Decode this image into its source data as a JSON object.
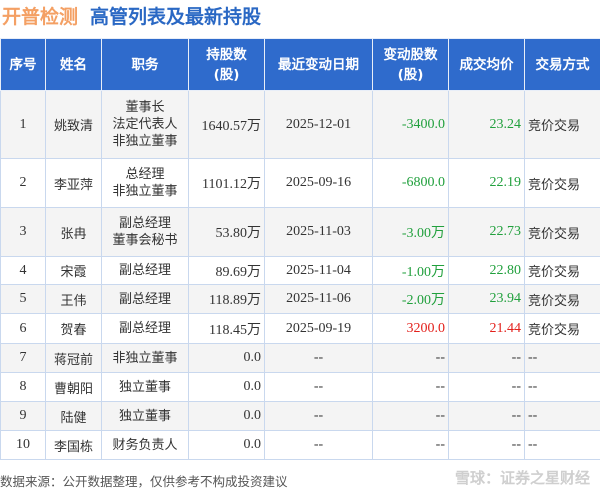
{
  "header": {
    "company": "开普检测",
    "title": "高管列表及最新持股"
  },
  "columns": [
    "序号",
    "姓名",
    "职务",
    "持股数\n(股)",
    "最近变动日期",
    "变动股数\n(股)",
    "成交均价",
    "交易方式"
  ],
  "colors": {
    "header_bg": "#2f6bcc",
    "company": "#f4a064",
    "title": "#2a68c4",
    "negative": "#21a03d",
    "positive": "#e3211c"
  },
  "rows": [
    {
      "no": "1",
      "name": "姚致清",
      "position": [
        "董事长",
        "法定代表人",
        "非独立董事"
      ],
      "shares": "1640.57万",
      "date": "2025-12-01",
      "change": "-3400.0",
      "price": "23.24",
      "method": "竞价交易",
      "dir": "down"
    },
    {
      "no": "2",
      "name": "李亚萍",
      "position": [
        "总经理",
        "非独立董事"
      ],
      "shares": "1101.12万",
      "date": "2025-09-16",
      "change": "-6800.0",
      "price": "22.19",
      "method": "竞价交易",
      "dir": "down"
    },
    {
      "no": "3",
      "name": "张冉",
      "position": [
        "副总经理",
        "董事会秘书"
      ],
      "shares": "53.80万",
      "date": "2025-11-03",
      "change": "-3.00万",
      "price": "22.73",
      "method": "竞价交易",
      "dir": "down"
    },
    {
      "no": "4",
      "name": "宋霞",
      "position": [
        "副总经理"
      ],
      "shares": "89.69万",
      "date": "2025-11-04",
      "change": "-1.00万",
      "price": "22.80",
      "method": "竞价交易",
      "dir": "down"
    },
    {
      "no": "5",
      "name": "王伟",
      "position": [
        "副总经理"
      ],
      "shares": "118.89万",
      "date": "2025-11-06",
      "change": "-2.00万",
      "price": "23.94",
      "method": "竞价交易",
      "dir": "down"
    },
    {
      "no": "6",
      "name": "贺春",
      "position": [
        "副总经理"
      ],
      "shares": "118.45万",
      "date": "2025-09-19",
      "change": "3200.0",
      "price": "21.44",
      "method": "竞价交易",
      "dir": "up"
    },
    {
      "no": "7",
      "name": "蒋冠前",
      "position": [
        "非独立董事"
      ],
      "shares": "0.0",
      "date": "--",
      "change": "--",
      "price": "--",
      "method": "--",
      "dir": ""
    },
    {
      "no": "8",
      "name": "曹朝阳",
      "position": [
        "独立董事"
      ],
      "shares": "0.0",
      "date": "--",
      "change": "--",
      "price": "--",
      "method": "--",
      "dir": ""
    },
    {
      "no": "9",
      "name": "陆健",
      "position": [
        "独立董事"
      ],
      "shares": "0.0",
      "date": "--",
      "change": "--",
      "price": "--",
      "method": "--",
      "dir": ""
    },
    {
      "no": "10",
      "name": "李国栋",
      "position": [
        "财务负责人"
      ],
      "shares": "0.0",
      "date": "--",
      "change": "--",
      "price": "--",
      "method": "--",
      "dir": ""
    }
  ],
  "footer": {
    "source": "数据来源：公开数据整理，仅供参考不构成投资建议",
    "watermark": "雪球：证券之星财经"
  }
}
